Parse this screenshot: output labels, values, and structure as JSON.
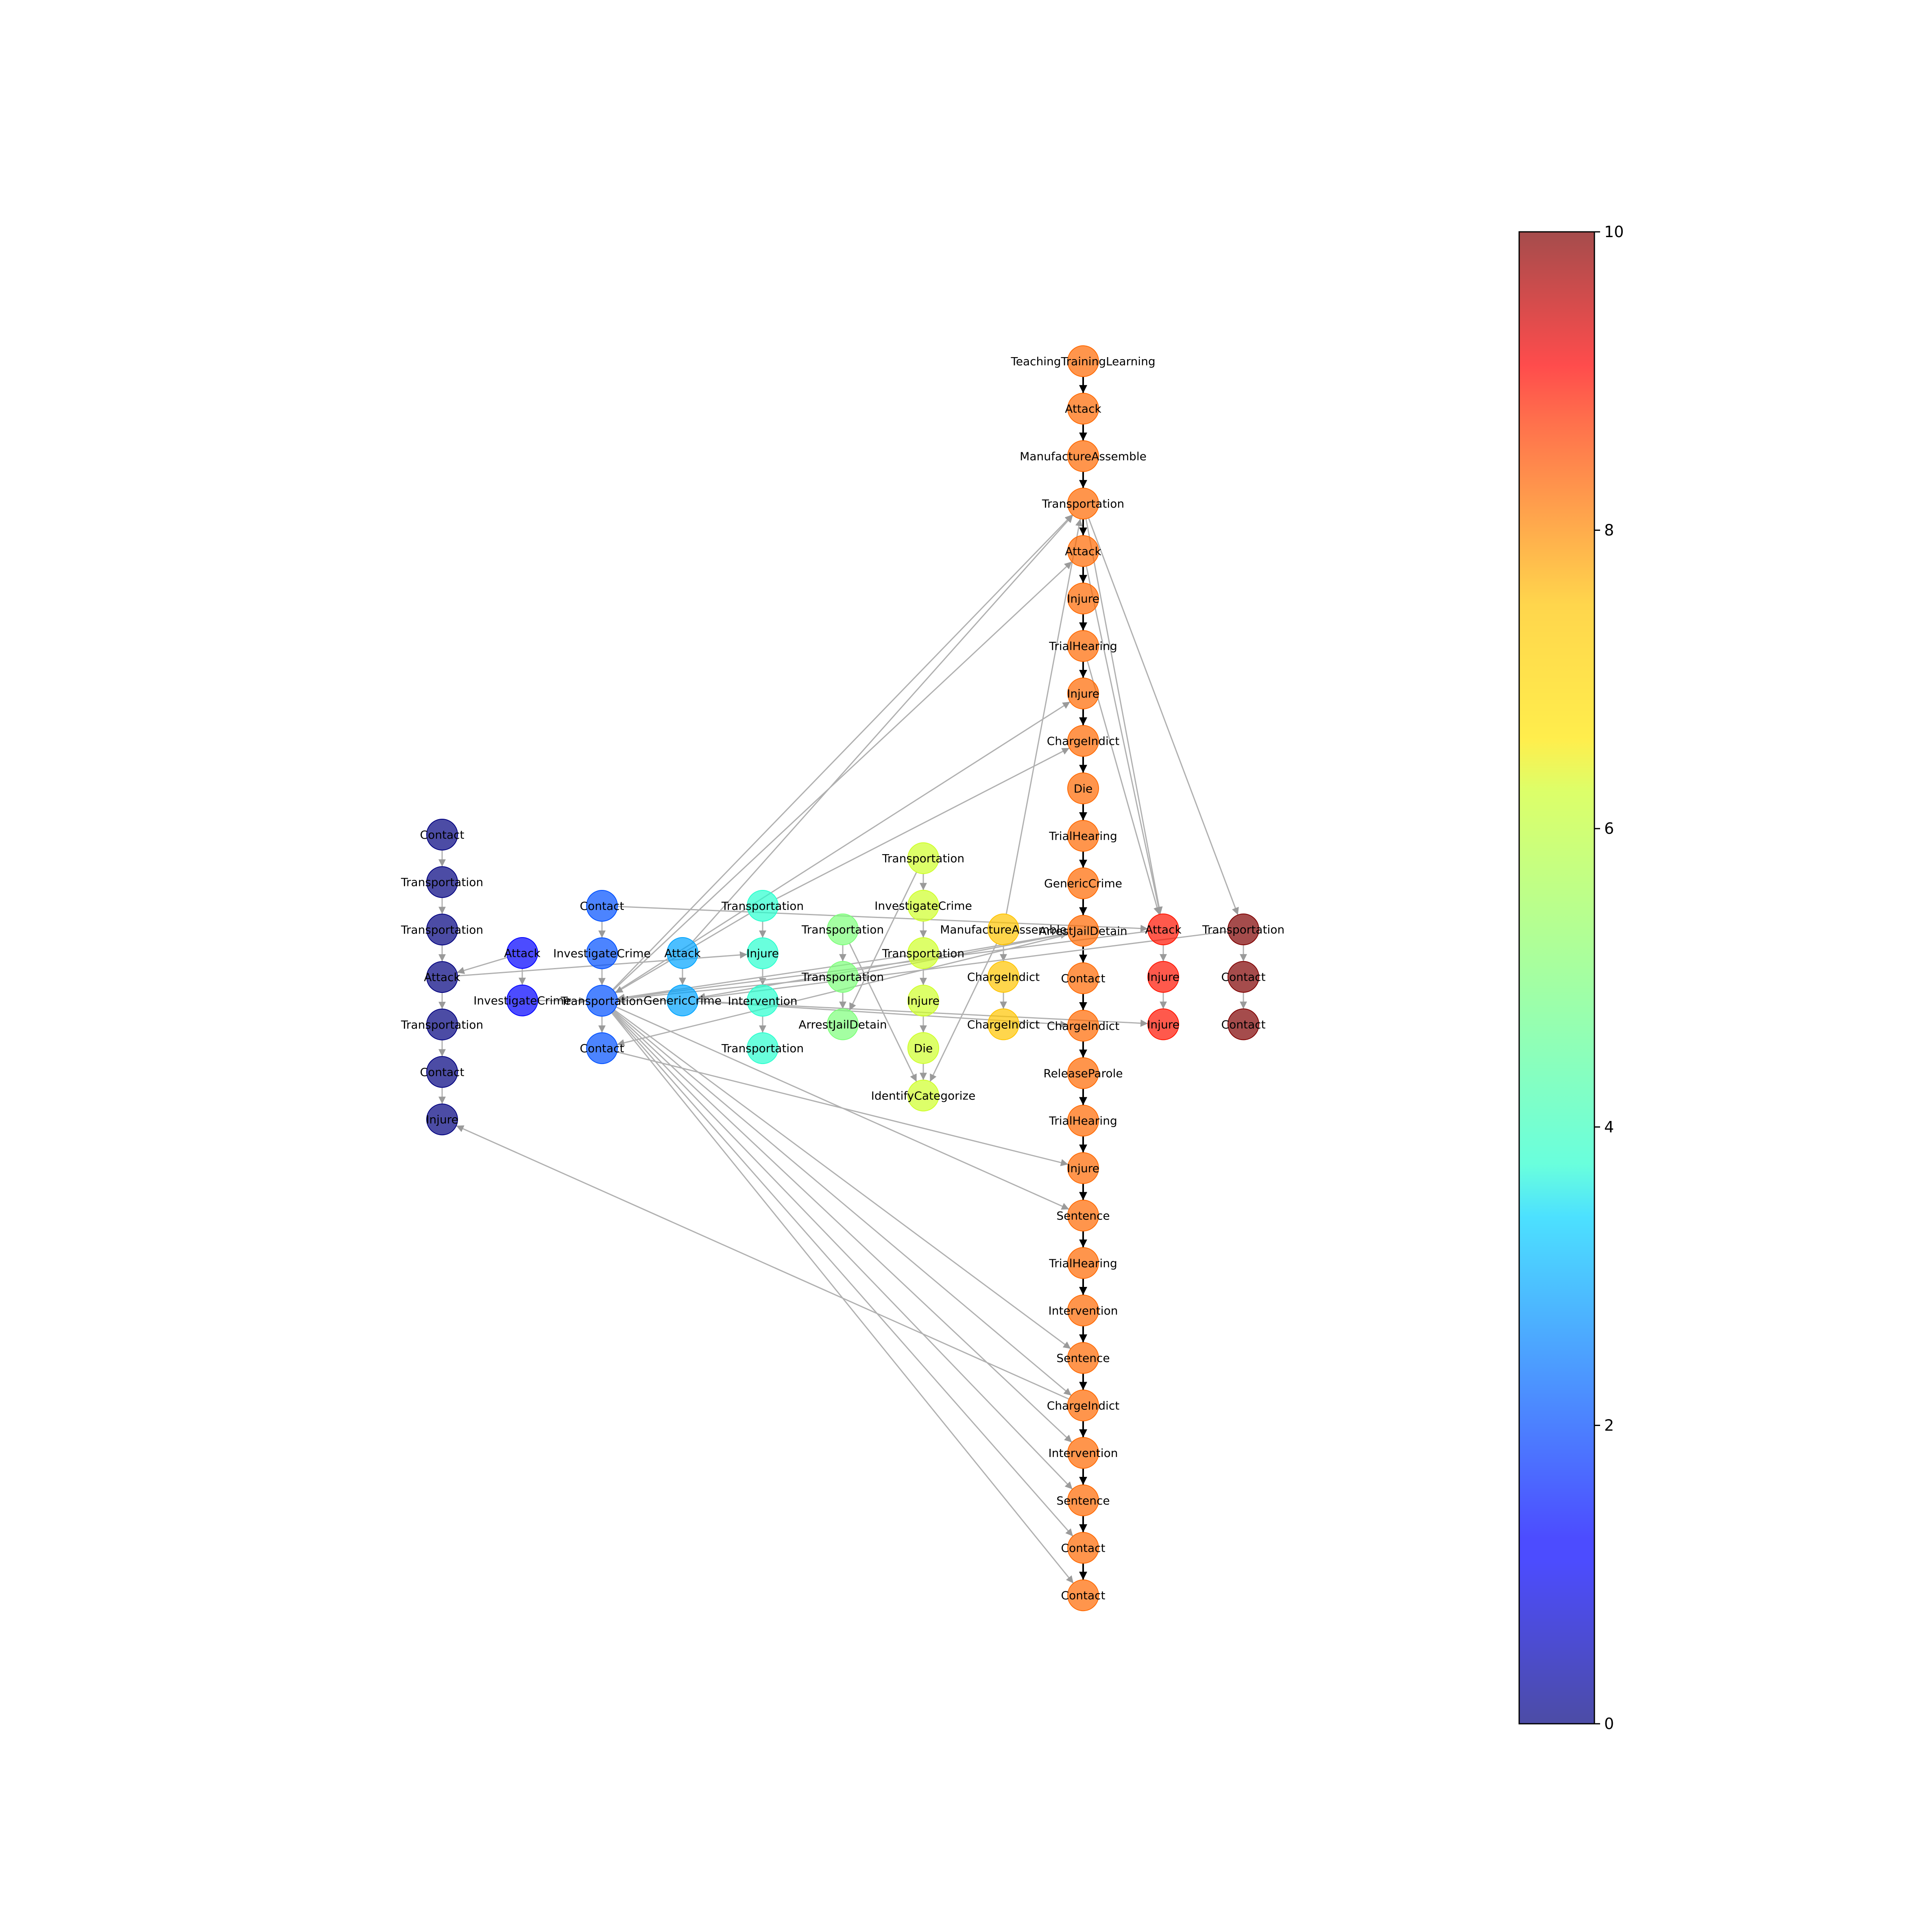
{
  "colorbar": {
    "min": 0,
    "max": 10,
    "ticks": [
      "0",
      "2",
      "4",
      "6",
      "8",
      "10"
    ],
    "colormap": "jet",
    "alpha": 0.7
  },
  "layers": [
    {
      "value": 0,
      "color": "#00007f",
      "nodes": [
        "Contact",
        "Transportation",
        "Transportation",
        "Attack",
        "Transportation",
        "Contact",
        "Injure"
      ]
    },
    {
      "value": 1,
      "color": "#0000ff",
      "nodes": [
        "Attack",
        "InvestigateCrime"
      ]
    },
    {
      "value": 2,
      "color": "#0050ff",
      "nodes": [
        "Contact",
        "InvestigateCrime",
        "Transportation",
        "Contact"
      ]
    },
    {
      "value": 3,
      "color": "#00a4ff",
      "nodes": [
        "Attack",
        "GenericCrime"
      ]
    },
    {
      "value": 4,
      "color": "#29ffce",
      "nodes": [
        "Transportation",
        "Injure",
        "Intervention",
        "Transportation"
      ]
    },
    {
      "value": 5,
      "color": "#7dff7a",
      "nodes": [
        "Transportation",
        "Transportation",
        "ArrestJailDetain"
      ]
    },
    {
      "value": 6,
      "color": "#ceff29",
      "nodes": [
        "Transportation",
        "InvestigateCrime",
        "Transportation",
        "Injure",
        "Die",
        "IdentifyCategorize"
      ]
    },
    {
      "value": 7,
      "color": "#ffc400",
      "nodes": [
        "ManufactureAssemble",
        "ChargeIndict",
        "ChargeIndict"
      ]
    },
    {
      "value": 8,
      "color": "#ff6800",
      "nodes": [
        "TeachingTrainingLearning",
        "Attack",
        "ManufactureAssemble",
        "Transportation",
        "Attack",
        "Injure",
        "TrialHearing",
        "Injure",
        "ChargeIndict",
        "Die",
        "TrialHearing",
        "GenericCrime",
        "ArrestJailDetain",
        "Contact",
        "ChargeIndict",
        "ReleaseParole",
        "TrialHearing",
        "Injure",
        "Sentence",
        "TrialHearing",
        "Intervention",
        "Sentence",
        "ChargeIndict",
        "Intervention",
        "Sentence",
        "Contact",
        "Contact"
      ]
    },
    {
      "value": 9,
      "color": "#ff1300",
      "nodes": [
        "Attack",
        "Injure",
        "Injure"
      ]
    },
    {
      "value": 10,
      "color": "#7f0000",
      "nodes": [
        "Transportation",
        "Contact",
        "Contact"
      ]
    }
  ],
  "edges": [
    [
      0,
      0,
      0,
      1
    ],
    [
      0,
      1,
      0,
      2
    ],
    [
      0,
      2,
      0,
      3
    ],
    [
      0,
      3,
      0,
      4
    ],
    [
      0,
      4,
      0,
      5
    ],
    [
      0,
      5,
      0,
      6
    ],
    [
      1,
      0,
      1,
      1
    ],
    [
      1,
      1,
      2,
      2
    ],
    [
      2,
      0,
      2,
      1
    ],
    [
      2,
      1,
      2,
      2
    ],
    [
      2,
      2,
      2,
      3
    ],
    [
      3,
      0,
      3,
      1
    ],
    [
      3,
      1,
      2,
      2
    ],
    [
      4,
      0,
      4,
      1
    ],
    [
      4,
      1,
      4,
      2
    ],
    [
      4,
      2,
      4,
      3
    ],
    [
      5,
      0,
      5,
      1
    ],
    [
      5,
      1,
      5,
      2
    ],
    [
      6,
      0,
      6,
      1
    ],
    [
      6,
      1,
      6,
      2
    ],
    [
      6,
      2,
      6,
      3
    ],
    [
      6,
      3,
      6,
      4
    ],
    [
      6,
      4,
      6,
      5
    ],
    [
      7,
      0,
      7,
      1
    ],
    [
      7,
      1,
      7,
      2
    ],
    [
      8,
      0,
      8,
      1
    ],
    [
      8,
      1,
      8,
      2
    ],
    [
      8,
      2,
      8,
      3
    ],
    [
      8,
      3,
      8,
      4
    ],
    [
      8,
      4,
      8,
      5
    ],
    [
      8,
      5,
      8,
      6
    ],
    [
      8,
      6,
      8,
      7
    ],
    [
      8,
      7,
      8,
      8
    ],
    [
      8,
      8,
      8,
      9
    ],
    [
      8,
      9,
      8,
      10
    ],
    [
      8,
      10,
      8,
      11
    ],
    [
      8,
      11,
      8,
      12
    ],
    [
      8,
      12,
      8,
      13
    ],
    [
      8,
      13,
      8,
      14
    ],
    [
      8,
      14,
      8,
      15
    ],
    [
      8,
      15,
      8,
      16
    ],
    [
      8,
      16,
      8,
      17
    ],
    [
      8,
      17,
      8,
      18
    ],
    [
      8,
      18,
      8,
      19
    ],
    [
      8,
      19,
      8,
      20
    ],
    [
      8,
      20,
      8,
      21
    ],
    [
      8,
      21,
      8,
      22
    ],
    [
      8,
      22,
      8,
      23
    ],
    [
      8,
      23,
      8,
      24
    ],
    [
      8,
      24,
      8,
      25
    ],
    [
      8,
      25,
      8,
      26
    ],
    [
      9,
      0,
      9,
      1
    ],
    [
      9,
      1,
      9,
      2
    ],
    [
      10,
      0,
      10,
      1
    ],
    [
      10,
      1,
      10,
      2
    ],
    [
      2,
      0,
      9,
      0
    ],
    [
      1,
      0,
      0,
      3
    ],
    [
      2,
      2,
      8,
      3
    ],
    [
      2,
      2,
      8,
      4
    ],
    [
      2,
      2,
      8,
      7
    ],
    [
      2,
      2,
      8,
      18
    ],
    [
      2,
      2,
      8,
      21
    ],
    [
      2,
      2,
      8,
      22
    ],
    [
      2,
      2,
      8,
      23
    ],
    [
      2,
      2,
      8,
      24
    ],
    [
      2,
      2,
      8,
      25
    ],
    [
      2,
      2,
      8,
      26
    ],
    [
      3,
      0,
      8,
      3
    ],
    [
      4,
      0,
      8,
      8
    ],
    [
      4,
      0,
      2,
      2
    ],
    [
      3,
      1,
      8,
      14
    ],
    [
      3,
      1,
      9,
      2
    ],
    [
      2,
      3,
      8,
      17
    ],
    [
      6,
      2,
      2,
      2
    ],
    [
      6,
      0,
      5,
      2
    ],
    [
      5,
      0,
      6,
      5
    ],
    [
      5,
      1,
      2,
      2
    ],
    [
      5,
      1,
      8,
      12
    ],
    [
      7,
      0,
      8,
      3
    ],
    [
      7,
      0,
      6,
      5
    ],
    [
      8,
      12,
      2,
      3
    ],
    [
      8,
      12,
      3,
      1
    ],
    [
      8,
      3,
      9,
      0
    ],
    [
      8,
      4,
      9,
      0
    ],
    [
      8,
      6,
      9,
      0
    ],
    [
      8,
      3,
      10,
      0
    ],
    [
      9,
      0,
      2,
      2
    ],
    [
      10,
      0,
      3,
      1
    ],
    [
      0,
      3,
      4,
      1
    ],
    [
      8,
      22,
      0,
      6
    ]
  ]
}
